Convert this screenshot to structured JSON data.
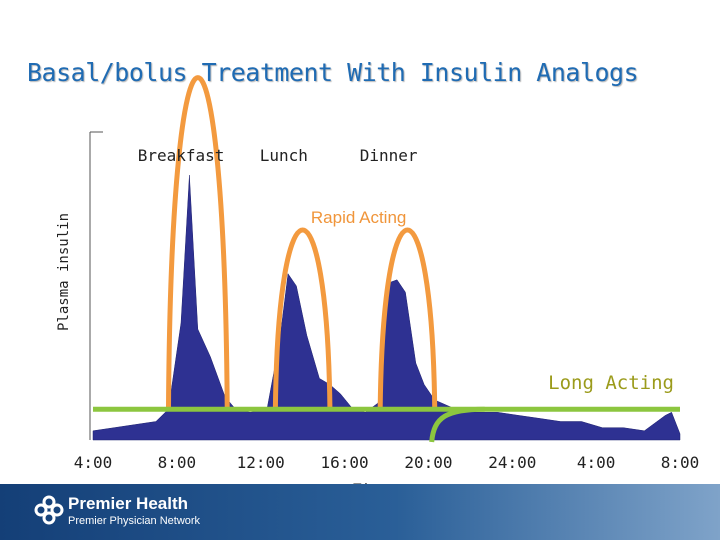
{
  "slide": {
    "title": "Basal/bolus Treatment With Insulin Analogs"
  },
  "chart_data": {
    "type": "area",
    "title": "Basal/bolus Treatment With Insulin Analogs",
    "xlabel": "Time",
    "ylabel": "Plasma insulin",
    "x_ticks": [
      "4:00",
      "8:00",
      "12:00",
      "16:00",
      "20:00",
      "24:00",
      "4:00",
      "8:00"
    ],
    "x_hours": [
      4,
      8,
      12,
      16,
      20,
      24,
      28,
      32
    ],
    "xlim": [
      4,
      32
    ],
    "ylim": [
      0,
      100
    ],
    "meals": [
      {
        "label": "Breakfast",
        "hour": 8.2
      },
      {
        "label": "Lunch",
        "hour": 13.1
      },
      {
        "label": "Dinner",
        "hour": 18.1
      }
    ],
    "physiologic_insulin": {
      "name": "Plasma insulin",
      "hours": [
        4,
        5,
        6,
        7,
        7.6,
        8.2,
        8.6,
        9.0,
        9.6,
        10.3,
        10.8,
        11.5,
        12.3,
        12.9,
        13.3,
        13.7,
        14.2,
        14.8,
        15.3,
        15.8,
        16.4,
        17.0,
        17.6,
        18.1,
        18.5,
        18.9,
        19.4,
        19.8,
        20.3,
        21.3,
        22.3,
        23.3,
        24.3,
        25.3,
        26.3,
        27.3,
        28.3,
        29.3,
        30.3,
        31.3,
        31.6,
        32
      ],
      "values": [
        3,
        4,
        5,
        6,
        10,
        38,
        86,
        36,
        27,
        14,
        10,
        9,
        10,
        32,
        54,
        50,
        34,
        20,
        18,
        15,
        10,
        9,
        12,
        51,
        52,
        48,
        25,
        18,
        13,
        10,
        9,
        9,
        8,
        7,
        6,
        6,
        4,
        4,
        3,
        8,
        9,
        2
      ]
    },
    "rapid_acting": {
      "name": "Rapid Acting",
      "color": "#f39a3f",
      "doses": [
        {
          "start": 7.6,
          "end": 10.4,
          "peak_hour": 8.9,
          "peak": 82
        },
        {
          "start": 12.7,
          "end": 15.3,
          "peak_hour": 14.0,
          "peak": 49
        },
        {
          "start": 17.7,
          "end": 20.3,
          "peak_hour": 19.0,
          "peak": 49
        }
      ]
    },
    "long_acting": {
      "name": "Long Acting",
      "color": "#8cc63f",
      "level": 10,
      "from_hour": 4,
      "to_hour": 32,
      "onset_hour": 20.3
    }
  },
  "footer": {
    "brand": "Premier Health",
    "subtitle": "Premier Physician Network",
    "bar_color": "#1a4a85"
  }
}
